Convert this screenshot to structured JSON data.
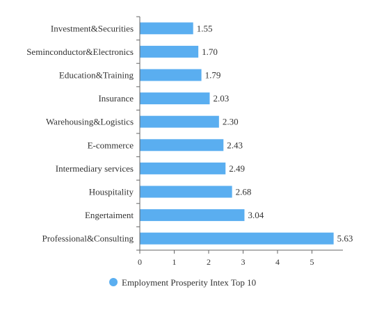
{
  "chart_data": {
    "type": "bar",
    "orientation": "horizontal",
    "categories": [
      "Investment&Securities",
      "Seminconductor&Electronics",
      "Education&Training",
      "Insurance",
      "Warehousing&Logistics",
      "E-commerce",
      "Intermediary services",
      "Houspitality",
      "Engertaiment",
      "Professional&Consulting"
    ],
    "series": [
      {
        "name": "Employment Prosperity Intex Top 10",
        "values": [
          1.55,
          1.7,
          1.79,
          2.03,
          2.3,
          2.43,
          2.49,
          2.68,
          3.04,
          5.63
        ],
        "value_labels": [
          "1.55",
          "1.70",
          "1.79",
          "2.03",
          "2.30",
          "2.43",
          "2.49",
          "2.68",
          "3.04",
          "5.63"
        ],
        "color": "#5aaef0"
      }
    ],
    "x_ticks": [
      "0",
      "1",
      "2",
      "3",
      "4",
      "5"
    ],
    "xlim": [
      0,
      5.9
    ],
    "title": "",
    "xlabel": "",
    "ylabel": "",
    "grid": false,
    "legend_position": "bottom-center"
  }
}
